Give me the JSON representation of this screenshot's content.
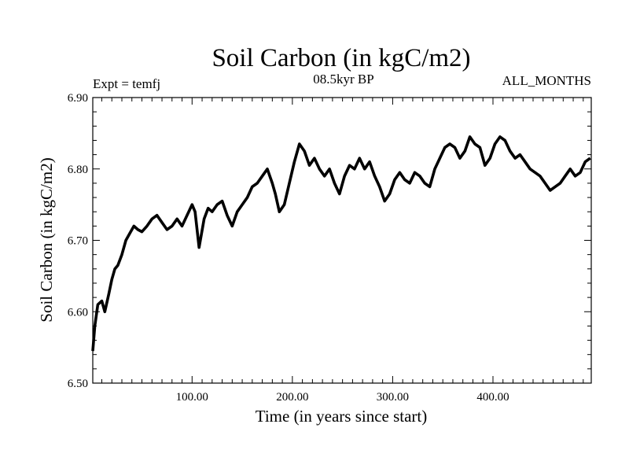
{
  "chart_data": {
    "type": "line",
    "title": "Soil Carbon (in kgC/m2)",
    "subtitle": "08.5kyr BP",
    "left_annotation": "Expt = temfj",
    "right_annotation": "ALL_MONTHS",
    "xlabel": "Time (in years since start)",
    "ylabel": "Soil Carbon (in kgC/m2)",
    "xlim": [
      1,
      498
    ],
    "ylim": [
      6.5,
      6.9
    ],
    "x_ticks": [
      100,
      200,
      300,
      400
    ],
    "x_tick_labels": [
      "100.00",
      "200.00",
      "300.00",
      "400.00"
    ],
    "y_ticks": [
      6.5,
      6.6,
      6.7,
      6.8,
      6.9
    ],
    "y_tick_labels": [
      "6.50",
      "6.60",
      "6.70",
      "6.80",
      "6.90"
    ],
    "grid": false,
    "line_color": "#000000",
    "series": [
      {
        "name": "Soil Carbon",
        "x": [
          1,
          3,
          6,
          10,
          13,
          17,
          20,
          23,
          26,
          30,
          34,
          38,
          42,
          46,
          50,
          55,
          60,
          65,
          70,
          75,
          80,
          85,
          90,
          95,
          100,
          103,
          107,
          112,
          116,
          120,
          125,
          130,
          135,
          140,
          145,
          150,
          155,
          160,
          165,
          170,
          175,
          180,
          183,
          187,
          192,
          197,
          202,
          207,
          212,
          217,
          222,
          227,
          232,
          237,
          242,
          247,
          252,
          257,
          262,
          267,
          272,
          277,
          282,
          287,
          292,
          297,
          302,
          307,
          312,
          317,
          322,
          327,
          332,
          337,
          342,
          347,
          352,
          357,
          362,
          367,
          372,
          377,
          382,
          387,
          392,
          397,
          402,
          407,
          412,
          417,
          422,
          427,
          432,
          437,
          442,
          447,
          452,
          457,
          462,
          467,
          472,
          477,
          482,
          487,
          492,
          497
        ],
        "y": [
          6.545,
          6.58,
          6.61,
          6.615,
          6.6,
          6.625,
          6.645,
          6.66,
          6.665,
          6.68,
          6.7,
          6.71,
          6.72,
          6.715,
          6.712,
          6.72,
          6.73,
          6.735,
          6.725,
          6.715,
          6.72,
          6.73,
          6.72,
          6.735,
          6.75,
          6.74,
          6.69,
          6.73,
          6.745,
          6.74,
          6.75,
          6.755,
          6.735,
          6.72,
          6.74,
          6.75,
          6.76,
          6.775,
          6.78,
          6.79,
          6.8,
          6.78,
          6.765,
          6.74,
          6.75,
          6.78,
          6.81,
          6.835,
          6.825,
          6.805,
          6.815,
          6.8,
          6.79,
          6.8,
          6.78,
          6.765,
          6.79,
          6.805,
          6.8,
          6.815,
          6.8,
          6.81,
          6.79,
          6.775,
          6.755,
          6.765,
          6.785,
          6.795,
          6.785,
          6.78,
          6.795,
          6.79,
          6.78,
          6.775,
          6.8,
          6.815,
          6.83,
          6.835,
          6.83,
          6.815,
          6.825,
          6.845,
          6.835,
          6.83,
          6.805,
          6.815,
          6.835,
          6.845,
          6.84,
          6.825,
          6.815,
          6.82,
          6.81,
          6.8,
          6.795,
          6.79,
          6.78,
          6.77,
          6.775,
          6.78,
          6.79,
          6.8,
          6.79,
          6.795,
          6.81,
          6.815
        ]
      }
    ]
  }
}
